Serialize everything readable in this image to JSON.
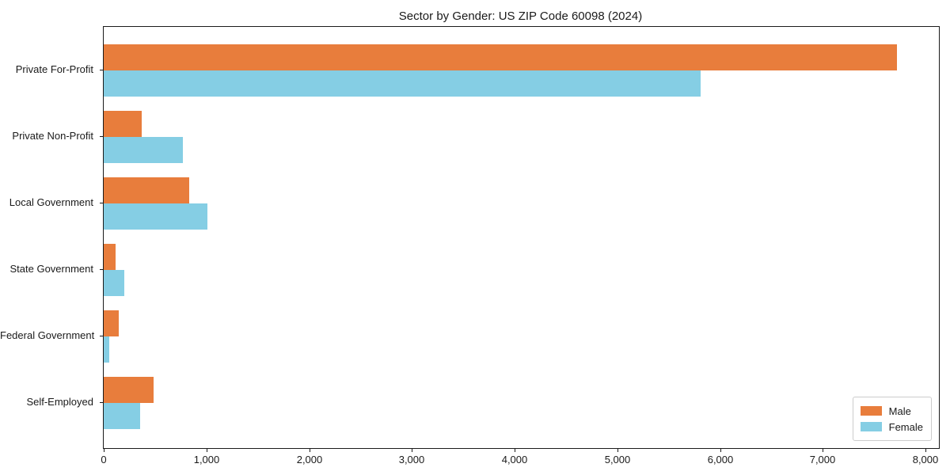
{
  "chart_data": {
    "type": "bar",
    "orientation": "horizontal",
    "title": "Sector by Gender: US ZIP Code 60098 (2024)",
    "categories": [
      "Private For-Profit",
      "Private Non-Profit",
      "Local Government",
      "State Government",
      "Federal Government",
      "Self-Employed"
    ],
    "series": [
      {
        "name": "Male",
        "color": "#E87D3C",
        "values": [
          7720,
          370,
          830,
          115,
          145,
          485
        ]
      },
      {
        "name": "Female",
        "color": "#85CEE4",
        "values": [
          5810,
          770,
          1010,
          200,
          55,
          355
        ]
      }
    ],
    "xlabel": "",
    "ylabel": "",
    "xlim": [
      0,
      8130
    ],
    "xticks": [
      0,
      1000,
      2000,
      3000,
      4000,
      5000,
      6000,
      7000,
      8000
    ],
    "xtick_labels": [
      "0",
      "1,000",
      "2,000",
      "3,000",
      "4,000",
      "5,000",
      "6,000",
      "7,000",
      "8,000"
    ],
    "grid": false,
    "legend": {
      "position": "lower-right",
      "entries": [
        "Male",
        "Female"
      ]
    },
    "axis_color": "#1a1a1a",
    "background": "#ffffff"
  }
}
